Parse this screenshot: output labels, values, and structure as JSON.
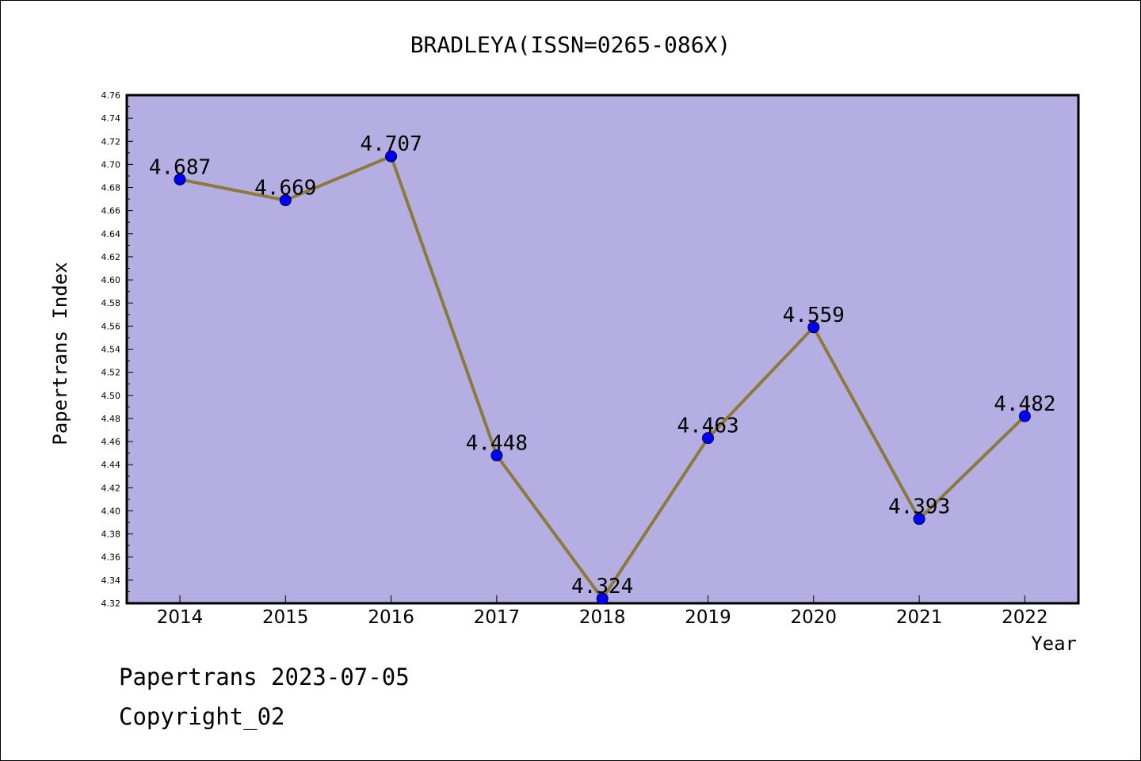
{
  "chart_data": {
    "type": "line",
    "title": "BRADLEYA(ISSN=0265-086X)",
    "xlabel": "Year",
    "ylabel": "Papertrans Index",
    "x": [
      "2014",
      "2015",
      "2016",
      "2017",
      "2018",
      "2019",
      "2020",
      "2021",
      "2022"
    ],
    "series": [
      {
        "values": [
          4.687,
          4.669,
          4.707,
          4.448,
          4.324,
          4.463,
          4.559,
          4.393,
          4.482
        ],
        "labels": [
          "4.687",
          "4.669",
          "4.707",
          "4.448",
          "4.324",
          "4.463",
          "4.559",
          "4.393",
          "4.482"
        ]
      }
    ],
    "ylim": [
      4.32,
      4.76
    ],
    "yticks": [
      "4.32",
      "4.34",
      "4.36",
      "4.38",
      "4.40",
      "4.42",
      "4.44",
      "4.46",
      "4.48",
      "4.50",
      "4.52",
      "4.54",
      "4.56",
      "4.58",
      "4.60",
      "4.62",
      "4.64",
      "4.66",
      "4.68",
      "4.70",
      "4.72",
      "4.74",
      "4.76"
    ],
    "grid": false,
    "colors": {
      "plot_background": "#b5aee2",
      "line": "#8b7a3c",
      "marker": "#0000ff"
    }
  },
  "footer": {
    "line1": "Papertrans 2023-07-05",
    "line2": "Copyright_02"
  }
}
